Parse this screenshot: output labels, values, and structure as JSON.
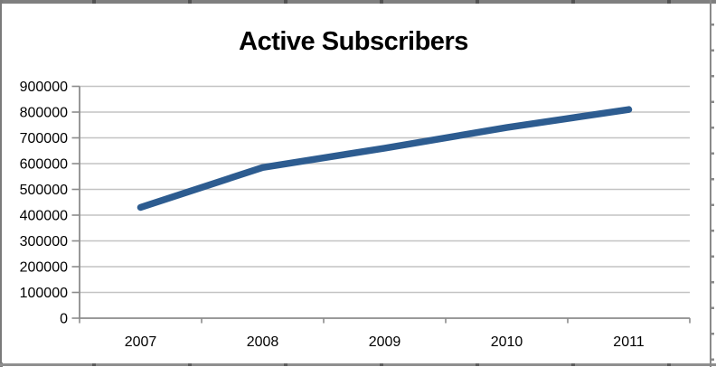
{
  "chart_data": {
    "type": "line",
    "title": "Active Subscribers",
    "categories": [
      "2007",
      "2008",
      "2009",
      "2010",
      "2011"
    ],
    "series": [
      {
        "name": "Active Subscribers",
        "color": "#2D5C90",
        "values": [
          430000,
          585000,
          660000,
          740000,
          810000
        ]
      }
    ],
    "xlabel": "",
    "ylabel": "",
    "ylim": [
      0,
      900000
    ],
    "ytick_step": 100000,
    "ytick_labels": [
      "0",
      "100000",
      "200000",
      "300000",
      "400000",
      "500000",
      "600000",
      "700000",
      "800000",
      "900000"
    ],
    "grid": true,
    "legend": "none",
    "gridline_color": "#C3C3C3",
    "axis_color": "#8C8C8C",
    "tick_label_color": "#000000",
    "background_color": "#FFFFFF"
  }
}
